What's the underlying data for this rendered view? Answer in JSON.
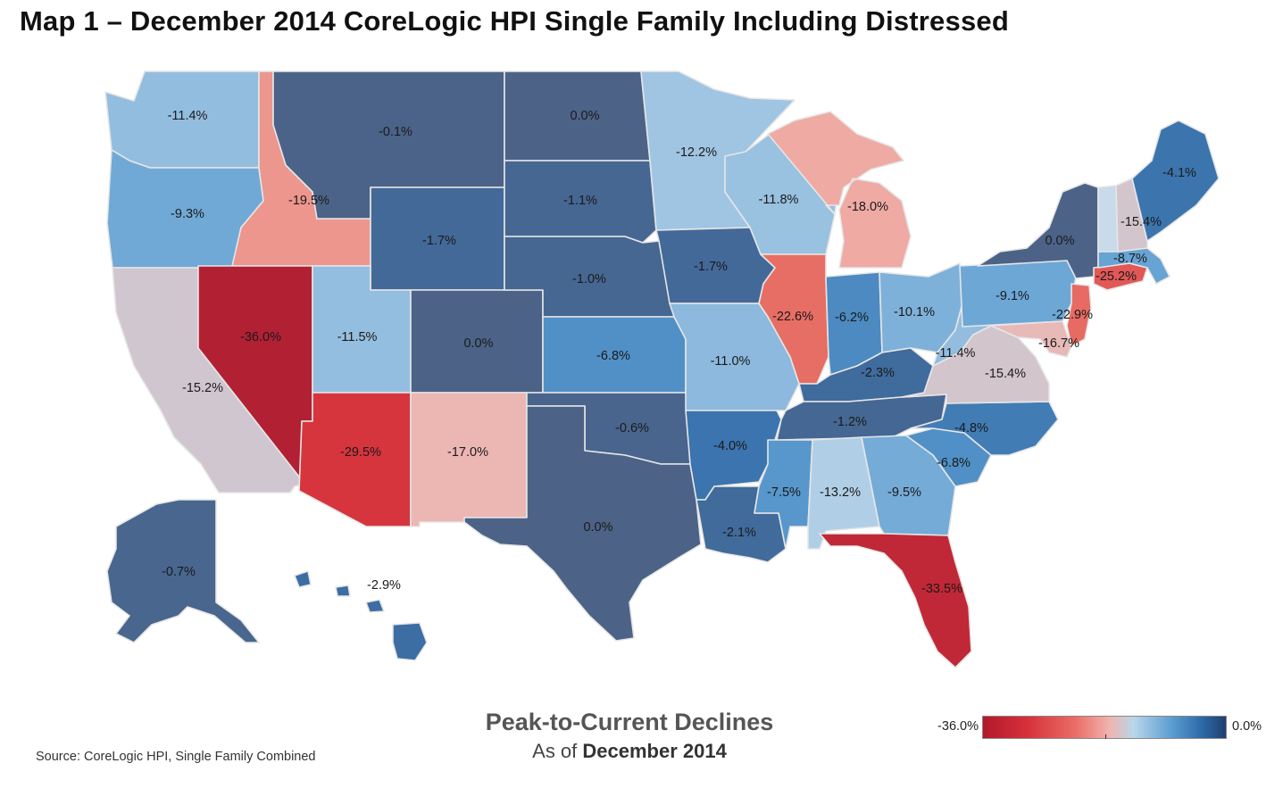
{
  "title": "Map 1 – December 2014 CoreLogic HPI Single Family Including Distressed",
  "legend": {
    "title": "Peak-to-Current Declines",
    "subtitle_prefix": "As of",
    "subtitle_date": "December 2014",
    "min_label": "-36.0%",
    "max_label": "0.0%",
    "min_color": "#b2182b",
    "max_color": "#1f3f6e"
  },
  "source": "Source: CoreLogic HPI, Single Family Combined",
  "chart_data": {
    "type": "choropleth",
    "unit": "%",
    "range": [
      -36.0,
      0.0
    ],
    "states": [
      {
        "state": "WA",
        "value": -11.4,
        "label": "-11.4%"
      },
      {
        "state": "OR",
        "value": -9.3,
        "label": "-9.3%"
      },
      {
        "state": "CA",
        "value": -15.2,
        "label": "-15.2%"
      },
      {
        "state": "ID",
        "value": -19.5,
        "label": "-19.5%"
      },
      {
        "state": "NV",
        "value": -36.0,
        "label": "-36.0%"
      },
      {
        "state": "MT",
        "value": -0.1,
        "label": "-0.1%"
      },
      {
        "state": "WY",
        "value": -1.7,
        "label": "-1.7%"
      },
      {
        "state": "UT",
        "value": -11.5,
        "label": "-11.5%"
      },
      {
        "state": "AZ",
        "value": -29.5,
        "label": "-29.5%"
      },
      {
        "state": "CO",
        "value": 0.0,
        "label": "0.0%"
      },
      {
        "state": "NM",
        "value": -17.0,
        "label": "-17.0%"
      },
      {
        "state": "ND",
        "value": 0.0,
        "label": "0.0%"
      },
      {
        "state": "SD",
        "value": -1.1,
        "label": "-1.1%"
      },
      {
        "state": "NE",
        "value": -1.0,
        "label": "-1.0%"
      },
      {
        "state": "KS",
        "value": -6.8,
        "label": "-6.8%"
      },
      {
        "state": "OK",
        "value": -0.6,
        "label": "-0.6%"
      },
      {
        "state": "TX",
        "value": 0.0,
        "label": "0.0%"
      },
      {
        "state": "MN",
        "value": -12.2,
        "label": "-12.2%"
      },
      {
        "state": "IA",
        "value": -1.7,
        "label": "-1.7%"
      },
      {
        "state": "MO",
        "value": -11.0,
        "label": "-11.0%"
      },
      {
        "state": "AR",
        "value": -4.0,
        "label": "-4.0%"
      },
      {
        "state": "LA",
        "value": -2.1,
        "label": "-2.1%"
      },
      {
        "state": "WI",
        "value": -11.8,
        "label": "-11.8%"
      },
      {
        "state": "IL",
        "value": -22.6,
        "label": "-22.6%"
      },
      {
        "state": "MI",
        "value": -18.0,
        "label": "-18.0%"
      },
      {
        "state": "IN",
        "value": -6.2,
        "label": "-6.2%"
      },
      {
        "state": "OH",
        "value": -10.1,
        "label": "-10.1%"
      },
      {
        "state": "KY",
        "value": -2.3,
        "label": "-2.3%"
      },
      {
        "state": "TN",
        "value": -1.2,
        "label": "-1.2%"
      },
      {
        "state": "MS",
        "value": -7.5,
        "label": "-7.5%"
      },
      {
        "state": "AL",
        "value": -13.2,
        "label": "-13.2%"
      },
      {
        "state": "GA",
        "value": -9.5,
        "label": "-9.5%"
      },
      {
        "state": "FL",
        "value": -33.5,
        "label": "-33.5%"
      },
      {
        "state": "SC",
        "value": -6.8,
        "label": "-6.8%"
      },
      {
        "state": "NC",
        "value": -4.8,
        "label": "-4.8%"
      },
      {
        "state": "VA",
        "value": -15.4,
        "label": "-15.4%"
      },
      {
        "state": "WV",
        "value": -11.4,
        "label": "-11.4%"
      },
      {
        "state": "PA",
        "value": -9.1,
        "label": "-9.1%"
      },
      {
        "state": "NY",
        "value": 0.0,
        "label": "0.0%"
      },
      {
        "state": "NJ",
        "value": -22.9,
        "label": "-22.9%"
      },
      {
        "state": "MD",
        "value": -16.7,
        "label": "-16.7%"
      },
      {
        "state": "CT",
        "value": -25.2,
        "label": "-25.2%"
      },
      {
        "state": "MA",
        "value": -8.7,
        "label": "-8.7%"
      },
      {
        "state": "NH",
        "value": -15.4,
        "label": "-15.4%"
      },
      {
        "state": "ME",
        "value": -4.1,
        "label": "-4.1%"
      },
      {
        "state": "AK",
        "value": -0.7,
        "label": "-0.7%"
      },
      {
        "state": "HI",
        "value": -2.9,
        "label": "-2.9%"
      }
    ]
  }
}
